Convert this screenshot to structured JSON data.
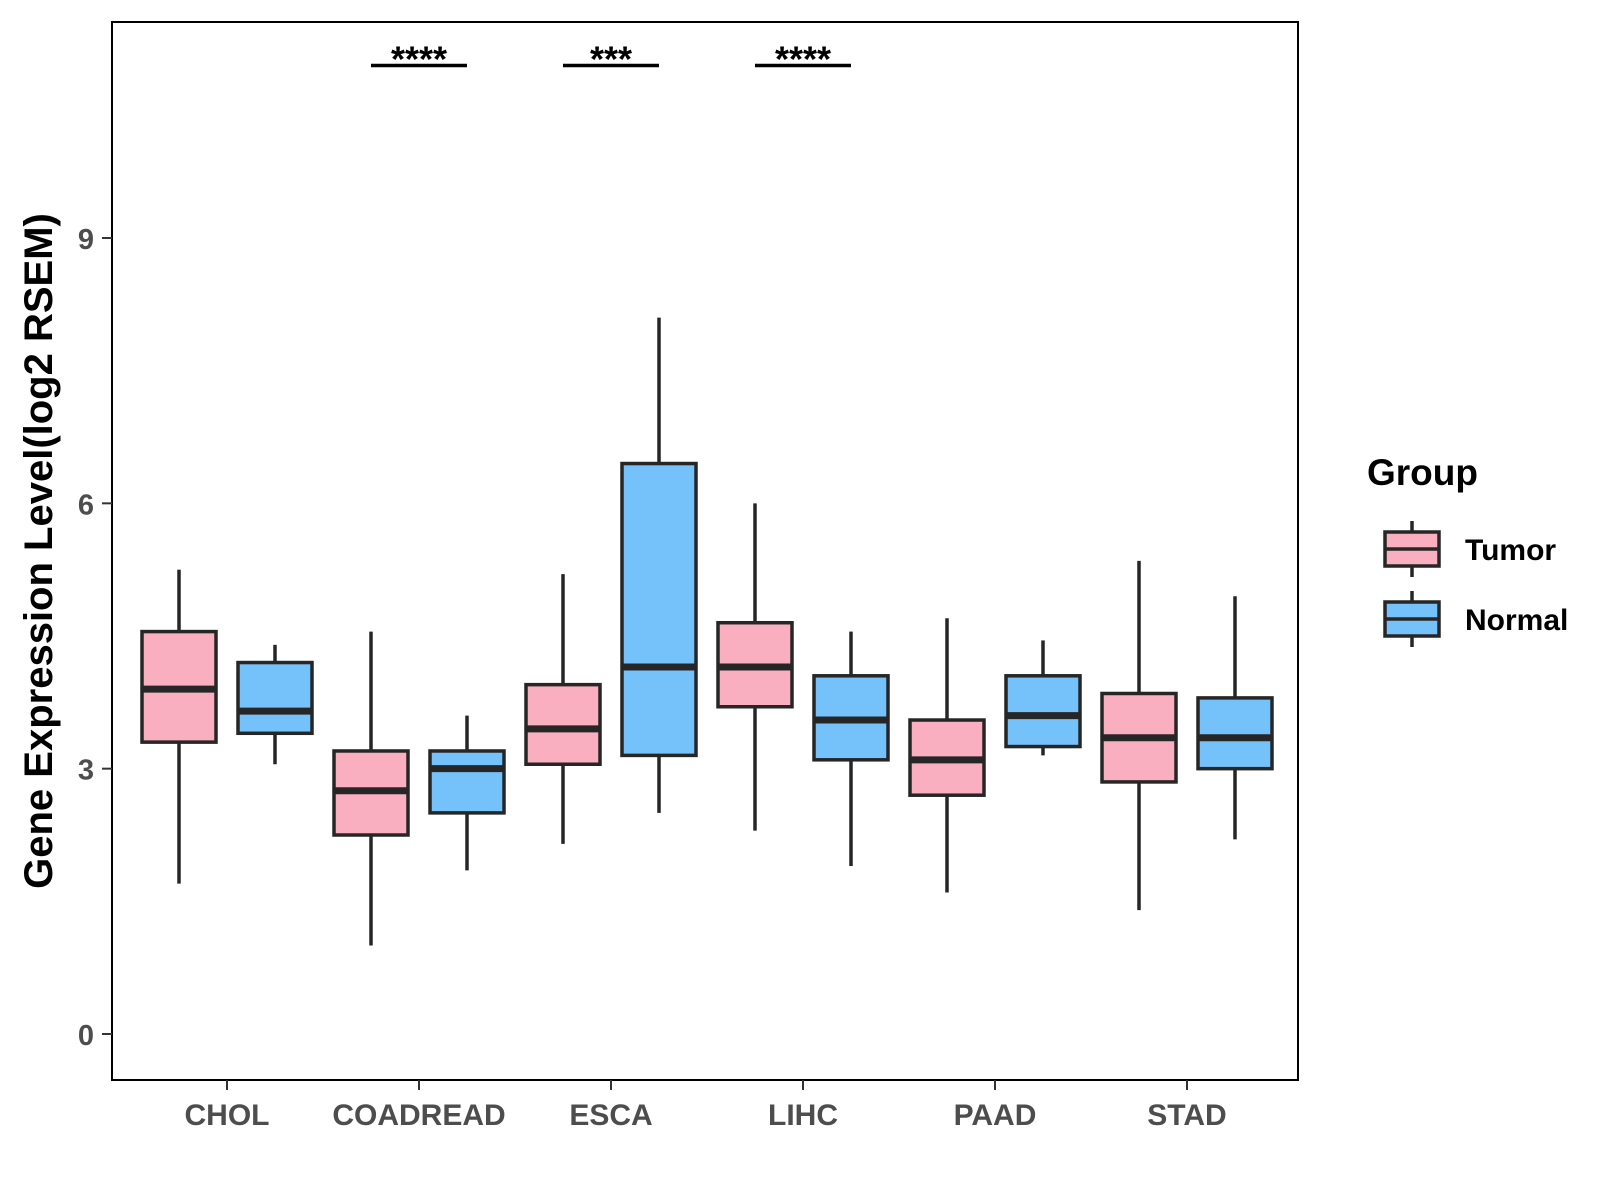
{
  "chart_data": {
    "type": "boxplot",
    "title": "",
    "xlabel": "",
    "ylabel": "Gene Expression Level(log2 RSEM)",
    "ylim": [
      -0.5,
      11.5
    ],
    "yticks": [
      0,
      3,
      6,
      9
    ],
    "categories": [
      "CHOL",
      "COADREAD",
      "ESCA",
      "LIHC",
      "PAAD",
      "STAD"
    ],
    "legend": {
      "title": "Group",
      "position": "right",
      "entries": [
        "Tumor",
        "Normal"
      ]
    },
    "colors": {
      "Tumor": "#FAAFC0",
      "Normal": "#75C1F9",
      "outline": "#262626"
    },
    "series": [
      {
        "name": "Tumor",
        "boxes": [
          {
            "whisker_low": 1.7,
            "q1": 3.3,
            "median": 3.9,
            "q3": 4.55,
            "whisker_high": 5.25
          },
          {
            "whisker_low": 1.0,
            "q1": 2.25,
            "median": 2.75,
            "q3": 3.2,
            "whisker_high": 4.55
          },
          {
            "whisker_low": 2.15,
            "q1": 3.05,
            "median": 3.45,
            "q3": 3.95,
            "whisker_high": 5.2
          },
          {
            "whisker_low": 2.3,
            "q1": 3.7,
            "median": 4.15,
            "q3": 4.65,
            "whisker_high": 6.0
          },
          {
            "whisker_low": 1.6,
            "q1": 2.7,
            "median": 3.1,
            "q3": 3.55,
            "whisker_high": 4.7
          },
          {
            "whisker_low": 1.4,
            "q1": 2.85,
            "median": 3.35,
            "q3": 3.85,
            "whisker_high": 5.35
          }
        ]
      },
      {
        "name": "Normal",
        "boxes": [
          {
            "whisker_low": 3.05,
            "q1": 3.4,
            "median": 3.65,
            "q3": 4.2,
            "whisker_high": 4.4
          },
          {
            "whisker_low": 1.85,
            "q1": 2.5,
            "median": 3.0,
            "q3": 3.2,
            "whisker_high": 3.6
          },
          {
            "whisker_low": 2.5,
            "q1": 3.15,
            "median": 4.15,
            "q3": 6.45,
            "whisker_high": 8.1
          },
          {
            "whisker_low": 1.9,
            "q1": 3.1,
            "median": 3.55,
            "q3": 4.05,
            "whisker_high": 4.55
          },
          {
            "whisker_low": 3.15,
            "q1": 3.25,
            "median": 3.6,
            "q3": 4.05,
            "whisker_high": 4.45
          },
          {
            "whisker_low": 2.2,
            "q1": 3.0,
            "median": 3.35,
            "q3": 3.8,
            "whisker_high": 4.95
          }
        ]
      }
    ],
    "significance": [
      {
        "category": "COADREAD",
        "label": "****"
      },
      {
        "category": "ESCA",
        "label": "***"
      },
      {
        "category": "LIHC",
        "label": "****"
      }
    ],
    "significance_level": 10.95
  }
}
